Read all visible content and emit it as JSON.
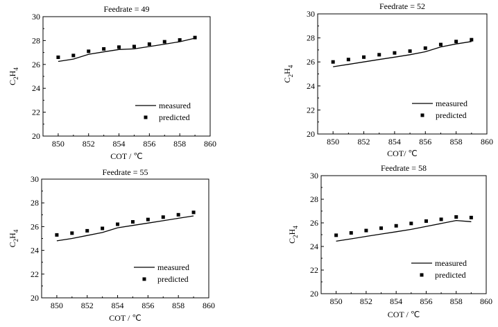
{
  "chart_data": [
    {
      "type": "line",
      "title": "Feedrate = 49",
      "xlabel": "COT / ℃",
      "ylabel": {
        "main": "C",
        "sub1": "2",
        "mid": "H",
        "sub2": "4"
      },
      "xlim": [
        849,
        860
      ],
      "ylim": [
        20,
        30
      ],
      "xticks": [
        850,
        852,
        854,
        856,
        858,
        860
      ],
      "yticks": [
        20,
        22,
        24,
        26,
        28,
        30
      ],
      "legend_position": "bottom-right",
      "series": [
        {
          "name": "measured",
          "style": "line",
          "x": [
            850,
            851,
            852,
            853,
            854,
            855,
            856,
            857,
            858,
            859
          ],
          "y": [
            26.25,
            26.45,
            26.85,
            27.05,
            27.25,
            27.3,
            27.5,
            27.7,
            27.9,
            28.2
          ]
        },
        {
          "name": "predicted",
          "style": "marker",
          "x": [
            850,
            851,
            852,
            853,
            854,
            855,
            856,
            857,
            858,
            859
          ],
          "y": [
            26.6,
            26.75,
            27.1,
            27.3,
            27.45,
            27.5,
            27.7,
            27.9,
            28.05,
            28.25
          ]
        }
      ]
    },
    {
      "type": "line",
      "title": "Feedrate = 52",
      "xlabel": "COT/ ℃",
      "ylabel": {
        "main": "C",
        "sub1": "2",
        "mid": "H",
        "sub2": "4"
      },
      "xlim": [
        849,
        860
      ],
      "ylim": [
        20,
        30
      ],
      "xticks": [
        850,
        852,
        854,
        856,
        858,
        860
      ],
      "yticks": [
        20,
        22,
        24,
        26,
        28,
        30
      ],
      "legend_position": "bottom-right",
      "series": [
        {
          "name": "measured",
          "style": "line",
          "x": [
            850,
            851,
            852,
            853,
            854,
            855,
            856,
            857,
            858,
            859
          ],
          "y": [
            25.6,
            25.8,
            26.0,
            26.2,
            26.4,
            26.6,
            26.85,
            27.25,
            27.5,
            27.7
          ]
        },
        {
          "name": "predicted",
          "style": "marker",
          "x": [
            850,
            851,
            852,
            853,
            854,
            855,
            856,
            857,
            858,
            859
          ],
          "y": [
            26.0,
            26.2,
            26.4,
            26.6,
            26.75,
            26.9,
            27.15,
            27.45,
            27.7,
            27.85
          ]
        }
      ]
    },
    {
      "type": "line",
      "title": "Feedrate = 55",
      "xlabel": "COT / ℃",
      "ylabel": {
        "main": "C",
        "sub1": "2",
        "mid": "H",
        "sub2": "4"
      },
      "xlim": [
        849,
        860
      ],
      "ylim": [
        20,
        30
      ],
      "xticks": [
        850,
        852,
        854,
        856,
        858,
        860
      ],
      "yticks": [
        20,
        22,
        24,
        26,
        28,
        30
      ],
      "legend_position": "bottom-right",
      "series": [
        {
          "name": "measured",
          "style": "line",
          "x": [
            850,
            851,
            852,
            853,
            854,
            855,
            856,
            857,
            858,
            859
          ],
          "y": [
            24.8,
            25.0,
            25.25,
            25.5,
            25.9,
            26.1,
            26.3,
            26.5,
            26.7,
            26.9
          ]
        },
        {
          "name": "predicted",
          "style": "marker",
          "x": [
            850,
            851,
            852,
            853,
            854,
            855,
            856,
            857,
            858,
            859
          ],
          "y": [
            25.3,
            25.45,
            25.65,
            25.85,
            26.2,
            26.4,
            26.6,
            26.8,
            27.0,
            27.2
          ]
        }
      ]
    },
    {
      "type": "line",
      "title": "Feedrate = 58",
      "xlabel": "COT / ℃",
      "ylabel": {
        "main": "C",
        "sub1": "2",
        "mid": "H",
        "sub2": "4"
      },
      "xlim": [
        849,
        860
      ],
      "ylim": [
        20,
        30
      ],
      "xticks": [
        850,
        852,
        854,
        856,
        858,
        860
      ],
      "yticks": [
        20,
        22,
        24,
        26,
        28,
        30
      ],
      "legend_position": "bottom-right",
      "series": [
        {
          "name": "measured",
          "style": "line",
          "x": [
            850,
            851,
            852,
            853,
            854,
            855,
            856,
            857,
            858,
            859
          ],
          "y": [
            24.45,
            24.65,
            24.85,
            25.05,
            25.25,
            25.45,
            25.7,
            25.95,
            26.2,
            26.1
          ]
        },
        {
          "name": "predicted",
          "style": "marker",
          "x": [
            850,
            851,
            852,
            853,
            854,
            855,
            856,
            857,
            858,
            859
          ],
          "y": [
            24.95,
            25.15,
            25.35,
            25.55,
            25.75,
            25.95,
            26.15,
            26.3,
            26.5,
            26.45
          ]
        }
      ]
    }
  ]
}
